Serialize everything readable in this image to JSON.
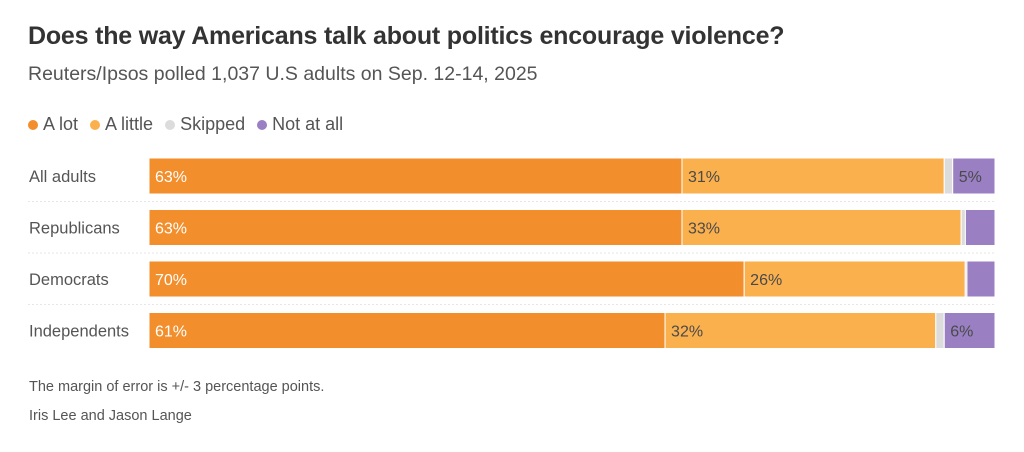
{
  "title": "Does the way Americans talk about politics encourage violence?",
  "subtitle": "Reuters/Ipsos polled 1,037 U.S adults on Sep. 12-14, 2025",
  "legend": [
    {
      "label": "A lot",
      "color": "#f28e2b"
    },
    {
      "label": "A little",
      "color": "#fbb04e"
    },
    {
      "label": "Skipped",
      "color": "#dcdcdc"
    },
    {
      "label": "Not at all",
      "color": "#9a7fc3"
    }
  ],
  "chart_data": {
    "type": "bar",
    "orientation": "horizontal",
    "stacked": true,
    "categories": [
      "All adults",
      "Republicans",
      "Democrats",
      "Independents"
    ],
    "series": [
      {
        "name": "A lot",
        "color": "#f28e2b",
        "values": [
          63,
          63,
          70,
          61
        ],
        "labels": [
          "63%",
          "63%",
          "70%",
          "61%"
        ]
      },
      {
        "name": "A little",
        "color": "#fbb04e",
        "values": [
          31,
          33,
          26,
          32
        ],
        "labels": [
          "31%",
          "33%",
          "26%",
          "32%"
        ]
      },
      {
        "name": "Skipped",
        "color": "#dcdcdc",
        "values": [
          1,
          0.5,
          0.2,
          1
        ],
        "labels": [
          "",
          "",
          "",
          ""
        ]
      },
      {
        "name": "Not at all",
        "color": "#9a7fc3",
        "values": [
          5,
          3.5,
          3.3,
          6
        ],
        "labels": [
          "5%",
          "",
          "",
          "6%"
        ]
      }
    ],
    "xlim": [
      0,
      100
    ],
    "grid": false,
    "legend_position": "top-left"
  },
  "footnote": "The margin of error is +/- 3 percentage points.",
  "credit": "Iris Lee and Jason Lange"
}
